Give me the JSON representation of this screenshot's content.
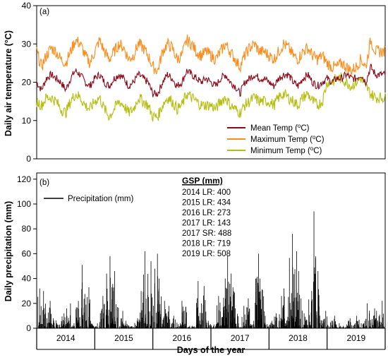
{
  "chart_data": [
    {
      "type": "line",
      "panel_label": "(a)",
      "ylabel": "Daily air temperature (°C)",
      "ylim": [
        0,
        40
      ],
      "yticks": [
        0,
        10,
        20,
        30,
        40
      ],
      "x_years": [
        "2014",
        "2015",
        "2016",
        "2017",
        "2018",
        "2019"
      ],
      "legend_position": "bottom-right",
      "series": [
        {
          "name": "Mean Temp (°C)",
          "color": "#8b0a1a",
          "monthly_values": [
            20,
            18,
            21,
            22,
            21,
            20,
            18,
            21,
            23,
            22,
            20,
            19,
            21,
            22,
            20,
            19,
            21,
            22,
            21,
            19,
            20,
            22,
            21,
            20,
            17,
            17,
            20,
            22,
            21,
            19,
            20,
            23,
            22,
            21,
            20,
            21,
            20,
            19,
            21,
            22,
            20,
            19,
            17,
            20,
            21,
            22,
            21,
            21,
            20,
            19,
            21,
            22,
            22,
            20,
            19,
            21,
            22,
            20,
            19,
            20,
            21,
            20,
            21,
            21,
            22,
            21,
            21,
            22,
            20,
            24,
            22,
            22
          ]
        },
        {
          "name": "Maximum Temp (°C)",
          "color": "#ff8c1a",
          "monthly_values": [
            28,
            24,
            27,
            29,
            28,
            26,
            25,
            28,
            31,
            30,
            27,
            25,
            28,
            31,
            28,
            26,
            28,
            30,
            29,
            26,
            27,
            30,
            29,
            27,
            24,
            23,
            28,
            30,
            29,
            26,
            27,
            31,
            30,
            28,
            27,
            28,
            27,
            26,
            28,
            30,
            28,
            26,
            24,
            27,
            29,
            30,
            28,
            28,
            27,
            26,
            28,
            30,
            29,
            27,
            26,
            28,
            29,
            27,
            26,
            27,
            25,
            24,
            24,
            25,
            24,
            23,
            24,
            26,
            24,
            31,
            28,
            28
          ]
        },
        {
          "name": "Minimum Temp (°C)",
          "color": "#b5bd0e",
          "monthly_values": [
            15,
            14,
            16,
            16,
            15,
            13,
            12,
            15,
            17,
            16,
            14,
            13,
            15,
            16,
            13,
            11,
            13,
            15,
            14,
            12,
            13,
            16,
            15,
            14,
            11,
            11,
            14,
            16,
            15,
            13,
            14,
            17,
            16,
            15,
            14,
            14,
            14,
            13,
            15,
            16,
            14,
            13,
            12,
            14,
            15,
            16,
            15,
            15,
            15,
            14,
            16,
            17,
            16,
            15,
            14,
            16,
            17,
            15,
            14,
            15,
            20,
            20,
            21,
            21,
            20,
            19,
            20,
            21,
            19,
            17,
            16,
            16
          ]
        }
      ]
    },
    {
      "type": "bar",
      "panel_label": "(b)",
      "ylabel": "Daily precipitation (mm)",
      "xlabel": "Days of the year",
      "ylim": [
        0,
        125
      ],
      "yticks": [
        0,
        20,
        40,
        60,
        80,
        100,
        120
      ],
      "x_years": [
        "2014",
        "2015",
        "2016",
        "2017",
        "2018",
        "2019"
      ],
      "legend_position": "top-left",
      "series": [
        {
          "name": "Precipitation (mm)",
          "color": "#000000",
          "monthly_max_values": [
            32,
            30,
            22,
            8,
            4,
            12,
            20,
            4,
            22,
            51,
            33,
            6,
            4,
            26,
            44,
            58,
            46,
            14,
            6,
            2,
            8,
            30,
            62,
            54,
            60,
            40,
            22,
            18,
            10,
            4,
            22,
            2,
            3,
            38,
            34,
            6,
            3,
            26,
            40,
            58,
            44,
            16,
            18,
            24,
            6,
            60,
            40,
            10,
            6,
            12,
            26,
            32,
            76,
            62,
            46,
            12,
            30,
            94,
            46,
            14,
            6,
            10,
            4,
            2,
            8,
            4,
            10,
            6,
            20,
            16,
            14,
            22
          ]
        }
      ]
    }
  ],
  "gsp": {
    "title": "GSP (mm)",
    "entries": [
      "2014 LR: 400",
      "2015 LR: 434",
      "2016 LR: 273",
      "2017 LR: 143",
      "2017 SR: 488",
      "2018 LR: 719",
      "2019 LR: 508"
    ]
  }
}
